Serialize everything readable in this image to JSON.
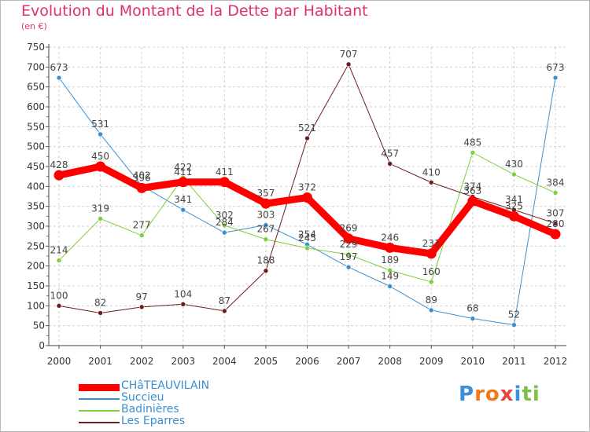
{
  "header": {
    "title": "Evolution du Montant de la Dette par Habitant",
    "subtitle": "(en €)"
  },
  "logo": {
    "letters": [
      "P",
      "r",
      "o",
      "x",
      "i",
      "t",
      "i"
    ],
    "colors": [
      "#3a8fd8",
      "#f07b1e",
      "#f07b1e",
      "#e8453c",
      "#3a8fd8",
      "#7cc143",
      "#7cc143"
    ]
  },
  "chart_data": {
    "type": "line",
    "title": "Evolution du Montant de la Dette par Habitant",
    "ylabel": "(en €)",
    "xlabel": "",
    "x": [
      "2000",
      "2001",
      "2002",
      "2003",
      "2004",
      "2005",
      "2006",
      "2007",
      "2008",
      "2009",
      "2010",
      "2011",
      "2012"
    ],
    "ylim": [
      0,
      750
    ],
    "yticks": [
      0,
      50,
      100,
      150,
      200,
      250,
      300,
      350,
      400,
      450,
      500,
      550,
      600,
      650,
      700,
      750
    ],
    "grid": "vertical dashed and horizontal dashed",
    "legend_position": "bottom-left",
    "series": [
      {
        "name": "CHâTEAUVILAIN",
        "color": "#ff0000",
        "width": 9,
        "values": [
          428,
          450,
          396,
          411,
          411,
          357,
          372,
          269,
          246,
          231,
          363,
          325,
          280
        ],
        "labels": [
          "428",
          "450",
          "396",
          "411",
          "411",
          "357",
          "372",
          "269",
          "246",
          "231",
          "363",
          "325",
          "280"
        ]
      },
      {
        "name": "Succieu",
        "color": "#3b8fcf",
        "width": 1,
        "values": [
          673,
          531,
          402,
          341,
          284,
          303,
          254,
          197,
          149,
          89,
          68,
          52,
          673
        ],
        "labels": [
          "673",
          "531",
          "402",
          "341",
          "284",
          "303",
          "254",
          "197",
          "149",
          "89",
          "68",
          "52",
          "673"
        ]
      },
      {
        "name": "Badinières",
        "color": "#7ed03a",
        "width": 1,
        "values": [
          214,
          319,
          277,
          422,
          302,
          267,
          245,
          229,
          189,
          160,
          485,
          430,
          384
        ],
        "labels": [
          "214",
          "319",
          "277",
          "422",
          "302",
          "267",
          "245",
          "229",
          "189",
          "160",
          "485",
          "430",
          "384"
        ]
      },
      {
        "name": "Les Eparres",
        "color": "#6b1e1e",
        "width": 1,
        "values": [
          100,
          82,
          97,
          104,
          87,
          188,
          521,
          707,
          457,
          410,
          374,
          341,
          307
        ],
        "labels": [
          "100",
          "82",
          "97",
          "104",
          "87",
          "188",
          "521",
          "707",
          "457",
          "410",
          "374",
          "341",
          "307"
        ]
      }
    ]
  }
}
